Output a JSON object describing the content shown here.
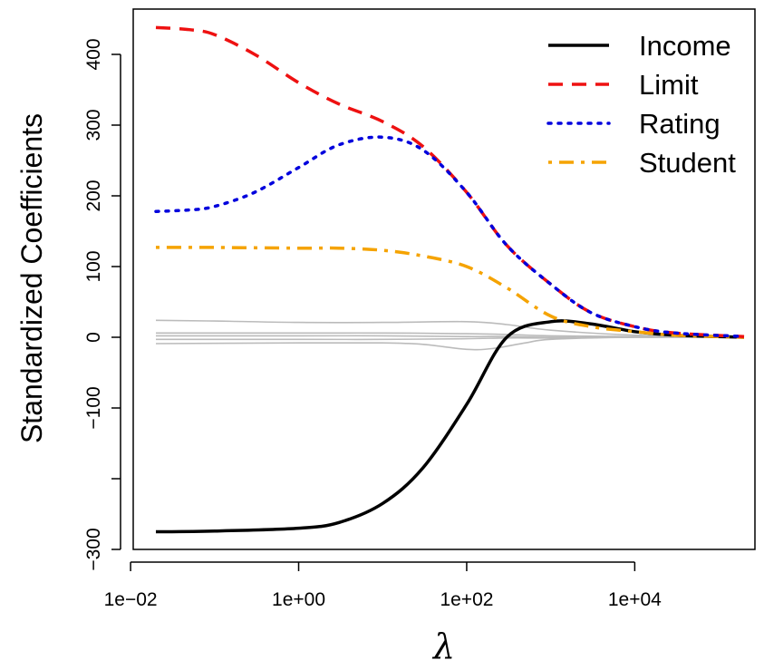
{
  "chart_data": {
    "type": "line",
    "xlabel": "λ",
    "ylabel": "Standardized Coefficients",
    "x_scale": "log10",
    "xlim": [
      0.01,
      200000
    ],
    "ylim": [
      -300,
      460
    ],
    "x_ticks": [
      {
        "value": 0.01,
        "label": "1e−02"
      },
      {
        "value": 1,
        "label": "1e+00"
      },
      {
        "value": 100,
        "label": "1e+02"
      },
      {
        "value": 10000,
        "label": "1e+04"
      }
    ],
    "y_ticks": [
      {
        "value": -300,
        "label": "−300"
      },
      {
        "value": -200,
        "label": ""
      },
      {
        "value": -100,
        "label": "−100"
      },
      {
        "value": 0,
        "label": "0"
      },
      {
        "value": 100,
        "label": "100"
      },
      {
        "value": 200,
        "label": "200"
      },
      {
        "value": 300,
        "label": "300"
      },
      {
        "value": 400,
        "label": "400"
      }
    ],
    "legend_position": "top-right",
    "series": [
      {
        "name": "Income",
        "color": "#000000",
        "style": "solid",
        "width": 3.5,
        "x": [
          0.02,
          0.1,
          1,
          3,
          10,
          30,
          100,
          300,
          1000,
          3000,
          10000,
          30000,
          200000
        ],
        "y": [
          -275,
          -274,
          -270,
          -262,
          -235,
          -185,
          -95,
          0,
          22,
          19,
          8,
          3,
          0
        ]
      },
      {
        "name": "Limit",
        "color": "#ee1111",
        "style": "dashed",
        "width": 3.5,
        "x": [
          0.02,
          0.05,
          0.1,
          0.3,
          1,
          3,
          10,
          30,
          100,
          300,
          1000,
          3000,
          10000,
          30000,
          200000
        ],
        "y": [
          438,
          435,
          428,
          400,
          360,
          330,
          305,
          270,
          205,
          130,
          75,
          35,
          15,
          6,
          1
        ]
      },
      {
        "name": "Rating",
        "color": "#0000dd",
        "style": "dotted",
        "width": 3.5,
        "x": [
          0.02,
          0.05,
          0.1,
          0.3,
          1,
          3,
          10,
          30,
          100,
          300,
          1000,
          3000,
          10000,
          30000,
          200000
        ],
        "y": [
          178,
          180,
          185,
          205,
          240,
          272,
          283,
          265,
          205,
          130,
          75,
          35,
          15,
          6,
          1
        ]
      },
      {
        "name": "Student",
        "color": "#f5a300",
        "style": "dashdot",
        "width": 3.5,
        "x": [
          0.02,
          0.1,
          1,
          3,
          10,
          30,
          100,
          300,
          1000,
          3000,
          10000,
          30000,
          200000
        ],
        "y": [
          127,
          127,
          126,
          126,
          123,
          115,
          100,
          70,
          30,
          15,
          8,
          3,
          0
        ]
      },
      {
        "name": "",
        "color": "#bbbbbb",
        "style": "solid",
        "width": 1.6,
        "x": [
          0.02,
          0.1,
          1,
          10,
          100,
          300,
          1000,
          10000,
          200000
        ],
        "y": [
          24,
          23,
          21,
          21,
          22,
          18,
          10,
          3,
          0
        ]
      },
      {
        "name": "",
        "color": "#bbbbbb",
        "style": "solid",
        "width": 1.6,
        "x": [
          0.02,
          1,
          10,
          100,
          300,
          1000,
          10000,
          200000
        ],
        "y": [
          6,
          6,
          6,
          5,
          4,
          2,
          1,
          0
        ]
      },
      {
        "name": "",
        "color": "#bbbbbb",
        "style": "solid",
        "width": 1.6,
        "x": [
          0.02,
          1,
          10,
          100,
          300,
          1000,
          10000,
          200000
        ],
        "y": [
          2,
          2,
          2,
          1,
          1,
          0,
          0,
          0
        ]
      },
      {
        "name": "",
        "color": "#bbbbbb",
        "style": "solid",
        "width": 1.6,
        "x": [
          0.02,
          1,
          10,
          100,
          300,
          1000,
          10000,
          200000
        ],
        "y": [
          -3,
          -3,
          -3,
          -2,
          -1,
          -1,
          0,
          0
        ]
      },
      {
        "name": "",
        "color": "#bbbbbb",
        "style": "solid",
        "width": 1.6,
        "x": [
          0.02,
          1,
          10,
          30,
          100,
          200,
          500,
          1000,
          10000,
          200000
        ],
        "y": [
          -9,
          -8,
          -8,
          -10,
          -17,
          -16,
          -8,
          -3,
          0,
          0
        ]
      }
    ]
  }
}
